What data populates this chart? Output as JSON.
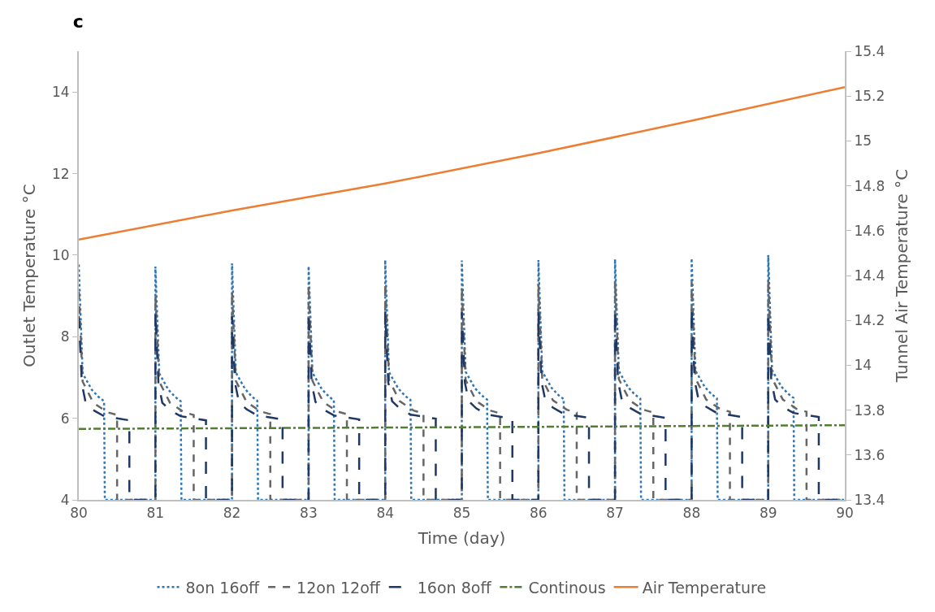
{
  "chart_data": {
    "type": "line",
    "title": "c",
    "xlabel": "Time (day)",
    "ylabel": "Outlet Temperature °C",
    "y2label": "Tunnel Air Temperature °C",
    "xlim": [
      80,
      90
    ],
    "xticks": [
      80,
      81,
      82,
      83,
      84,
      85,
      86,
      87,
      88,
      89,
      90
    ],
    "ylim": [
      4,
      15
    ],
    "yticks": [
      4,
      6,
      8,
      10,
      12,
      14
    ],
    "y2lim": [
      13.4,
      15.4
    ],
    "y2ticks": [
      13.4,
      13.6,
      13.8,
      14,
      14.2,
      14.4,
      14.6,
      14.8,
      15,
      15.2,
      15.4
    ],
    "legend": "bottom",
    "marker": "none",
    "series": [
      {
        "name": "8on 16off",
        "color": "#2e75b6",
        "line_style": "dotted",
        "x": [
          80,
          80.05,
          80.17,
          80.26,
          80.33,
          80.34,
          81,
          81,
          81.05,
          81.17,
          81.26,
          81.33,
          81.34,
          82,
          82,
          82.05,
          82.17,
          82.26,
          82.33,
          82.34,
          83,
          83,
          83.05,
          83.17,
          83.26,
          83.33,
          83.34,
          84,
          84,
          84.05,
          84.17,
          84.26,
          84.33,
          84.34,
          85,
          85,
          85.05,
          85.17,
          85.26,
          85.33,
          85.34,
          86,
          86,
          86.05,
          86.17,
          86.26,
          86.33,
          86.34,
          87,
          87,
          87.05,
          87.17,
          87.26,
          87.33,
          87.34,
          88,
          88,
          88.05,
          88.17,
          88.26,
          88.33,
          88.34,
          89,
          89,
          89.05,
          89.17,
          89.26,
          89.33,
          89.34,
          90
        ],
        "values": [
          9.77,
          7.1,
          6.7,
          6.52,
          6.42,
          4,
          4,
          9.72,
          7.1,
          6.7,
          6.52,
          6.42,
          4,
          4,
          9.8,
          7.12,
          6.72,
          6.53,
          6.43,
          4,
          4,
          9.73,
          7.12,
          6.72,
          6.54,
          6.44,
          4,
          4,
          9.88,
          7.13,
          6.73,
          6.55,
          6.45,
          4,
          4,
          9.87,
          7.14,
          6.74,
          6.56,
          6.46,
          4,
          4,
          9.88,
          7.15,
          6.75,
          6.57,
          6.47,
          4,
          4,
          9.9,
          7.16,
          6.76,
          6.58,
          6.48,
          4,
          4,
          9.92,
          7.17,
          6.77,
          6.59,
          6.49,
          4,
          4,
          10.0,
          7.18,
          6.78,
          6.6,
          6.5,
          4,
          4
        ]
      },
      {
        "name": "12on 12off",
        "color": "#666666",
        "line_style": "dashed",
        "x": [
          80,
          80.05,
          80.19,
          80.37,
          80.5,
          80.5,
          81,
          81,
          81.05,
          81.19,
          81.37,
          81.5,
          81.5,
          82,
          82,
          82.05,
          82.19,
          82.37,
          82.5,
          82.5,
          83,
          83,
          83.05,
          83.19,
          83.37,
          83.5,
          83.5,
          84,
          84,
          84.05,
          84.19,
          84.37,
          84.5,
          84.5,
          85,
          85,
          85.05,
          85.19,
          85.37,
          85.5,
          85.5,
          86,
          86,
          86.05,
          86.19,
          86.37,
          86.5,
          86.5,
          87,
          87,
          87.05,
          87.19,
          87.37,
          87.5,
          87.5,
          88,
          88,
          88.05,
          88.19,
          88.37,
          88.5,
          88.5,
          89,
          89,
          89.05,
          89.19,
          89.37,
          89.5,
          89.5,
          90
        ],
        "values": [
          9.1,
          6.9,
          6.38,
          6.15,
          6.08,
          4,
          4,
          9.0,
          6.9,
          6.38,
          6.15,
          6.08,
          4,
          4,
          9.1,
          6.92,
          6.4,
          6.17,
          6.1,
          4,
          4,
          9.25,
          6.92,
          6.4,
          6.17,
          6.1,
          4,
          4,
          9.3,
          6.94,
          6.42,
          6.19,
          6.12,
          4,
          4,
          9.2,
          6.94,
          6.42,
          6.19,
          6.12,
          4,
          4,
          9.3,
          6.96,
          6.44,
          6.21,
          6.14,
          4,
          4,
          9.35,
          6.96,
          6.44,
          6.21,
          6.14,
          4,
          4,
          9.35,
          6.98,
          6.46,
          6.23,
          6.16,
          4,
          4,
          9.4,
          6.98,
          6.46,
          6.23,
          6.16,
          4,
          4
        ]
      },
      {
        "name": "16on 8off",
        "color": "#203864",
        "line_style": "longdash",
        "x": [
          80,
          80.04,
          80.09,
          80.19,
          80.33,
          80.66,
          80.66,
          81,
          81,
          81.04,
          81.09,
          81.19,
          81.33,
          81.66,
          81.66,
          82,
          82,
          82.04,
          82.09,
          82.19,
          82.33,
          82.66,
          82.66,
          83,
          83,
          83.04,
          83.09,
          83.19,
          83.33,
          83.66,
          83.66,
          84,
          84,
          84.04,
          84.09,
          84.19,
          84.33,
          84.66,
          84.66,
          85,
          85,
          85.04,
          85.09,
          85.19,
          85.33,
          85.66,
          85.66,
          86,
          86,
          86.04,
          86.09,
          86.19,
          86.33,
          86.66,
          86.66,
          87,
          87,
          87.04,
          87.09,
          87.19,
          87.33,
          87.66,
          87.66,
          88,
          88,
          88.04,
          88.09,
          88.19,
          88.33,
          88.66,
          88.66,
          89,
          89,
          89.04,
          89.09,
          89.19,
          89.33,
          89.66,
          89.66,
          90
        ],
        "values": [
          8.5,
          6.85,
          6.38,
          6.2,
          6.05,
          5.95,
          4,
          4,
          8.6,
          6.85,
          6.38,
          6.2,
          6.05,
          5.95,
          4,
          4,
          8.5,
          6.86,
          6.4,
          6.22,
          6.07,
          5.97,
          4,
          4,
          8.6,
          6.86,
          6.4,
          6.22,
          6.07,
          5.97,
          4,
          4,
          8.6,
          6.88,
          6.42,
          6.24,
          6.09,
          5.99,
          4,
          4,
          8.6,
          6.88,
          6.42,
          6.24,
          6.09,
          5.99,
          4,
          4,
          8.6,
          6.9,
          6.44,
          6.26,
          6.11,
          6.01,
          4,
          4,
          8.65,
          6.9,
          6.44,
          6.26,
          6.11,
          6.01,
          4,
          4,
          8.7,
          6.92,
          6.46,
          6.28,
          6.13,
          6.03,
          4,
          4,
          8.6,
          6.92,
          6.46,
          6.28,
          6.13,
          6.03,
          4,
          4
        ]
      },
      {
        "name": "Continous",
        "color": "#4f7f2f",
        "line_style": "dashdot",
        "x": [
          80,
          85,
          90
        ],
        "values": [
          5.74,
          5.78,
          5.83
        ]
      },
      {
        "name": "Air Temperature",
        "color": "#ed7d31",
        "line_style": "solid",
        "axis": "y2",
        "x": [
          80,
          82,
          84,
          86,
          88,
          90
        ],
        "values": [
          14.56,
          14.69,
          14.81,
          14.945,
          15.09,
          15.24
        ]
      }
    ]
  }
}
